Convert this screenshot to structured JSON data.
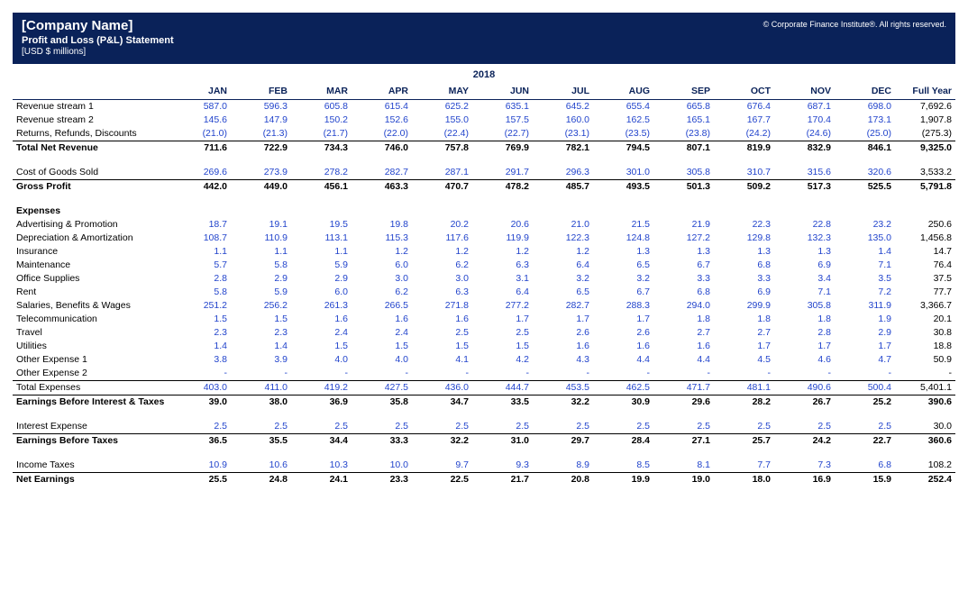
{
  "header": {
    "company_name": "[Company Name]",
    "subtitle": "Profit and Loss (P&L) Statement",
    "units": "[USD $ millions]",
    "copyright": "© Corporate Finance Institute®. All rights reserved.",
    "year": "2018"
  },
  "columns": [
    "JAN",
    "FEB",
    "MAR",
    "APR",
    "MAY",
    "JUN",
    "JUL",
    "AUG",
    "SEP",
    "OCT",
    "NOV",
    "DEC",
    "Full Year"
  ],
  "rows": [
    {
      "type": "data",
      "label": "Revenue stream 1",
      "vals": [
        "587.0",
        "596.3",
        "605.8",
        "615.4",
        "625.2",
        "635.1",
        "645.2",
        "655.4",
        "665.8",
        "676.4",
        "687.1",
        "698.0",
        "7,692.6"
      ]
    },
    {
      "type": "data",
      "label": "Revenue stream 2",
      "vals": [
        "145.6",
        "147.9",
        "150.2",
        "152.6",
        "155.0",
        "157.5",
        "160.0",
        "162.5",
        "165.1",
        "167.7",
        "170.4",
        "173.1",
        "1,907.8"
      ]
    },
    {
      "type": "data",
      "label": "Returns, Refunds, Discounts",
      "vals": [
        "(21.0)",
        "(21.3)",
        "(21.7)",
        "(22.0)",
        "(22.4)",
        "(22.7)",
        "(23.1)",
        "(23.5)",
        "(23.8)",
        "(24.2)",
        "(24.6)",
        "(25.0)",
        "(275.3)"
      ]
    },
    {
      "type": "total",
      "border": true,
      "label": "Total Net Revenue",
      "vals": [
        "711.6",
        "722.9",
        "734.3",
        "746.0",
        "757.8",
        "769.9",
        "782.1",
        "794.5",
        "807.1",
        "819.9",
        "832.9",
        "846.1",
        "9,325.0"
      ]
    },
    {
      "type": "spacer"
    },
    {
      "type": "data",
      "label": "Cost of Goods Sold",
      "vals": [
        "269.6",
        "273.9",
        "278.2",
        "282.7",
        "287.1",
        "291.7",
        "296.3",
        "301.0",
        "305.8",
        "310.7",
        "315.6",
        "320.6",
        "3,533.2"
      ]
    },
    {
      "type": "total",
      "border": true,
      "label": "Gross Profit",
      "vals": [
        "442.0",
        "449.0",
        "456.1",
        "463.3",
        "470.7",
        "478.2",
        "485.7",
        "493.5",
        "501.3",
        "509.2",
        "517.3",
        "525.5",
        "5,791.8"
      ]
    },
    {
      "type": "spacer"
    },
    {
      "type": "section",
      "label": "Expenses"
    },
    {
      "type": "data",
      "label": "Advertising & Promotion",
      "vals": [
        "18.7",
        "19.1",
        "19.5",
        "19.8",
        "20.2",
        "20.6",
        "21.0",
        "21.5",
        "21.9",
        "22.3",
        "22.8",
        "23.2",
        "250.6"
      ]
    },
    {
      "type": "data",
      "label": "Depreciation & Amortization",
      "vals": [
        "108.7",
        "110.9",
        "113.1",
        "115.3",
        "117.6",
        "119.9",
        "122.3",
        "124.8",
        "127.2",
        "129.8",
        "132.3",
        "135.0",
        "1,456.8"
      ]
    },
    {
      "type": "data",
      "label": "Insurance",
      "vals": [
        "1.1",
        "1.1",
        "1.1",
        "1.2",
        "1.2",
        "1.2",
        "1.2",
        "1.3",
        "1.3",
        "1.3",
        "1.3",
        "1.4",
        "14.7"
      ]
    },
    {
      "type": "data",
      "label": "Maintenance",
      "vals": [
        "5.7",
        "5.8",
        "5.9",
        "6.0",
        "6.2",
        "6.3",
        "6.4",
        "6.5",
        "6.7",
        "6.8",
        "6.9",
        "7.1",
        "76.4"
      ]
    },
    {
      "type": "data",
      "label": "Office Supplies",
      "vals": [
        "2.8",
        "2.9",
        "2.9",
        "3.0",
        "3.0",
        "3.1",
        "3.2",
        "3.2",
        "3.3",
        "3.3",
        "3.4",
        "3.5",
        "37.5"
      ]
    },
    {
      "type": "data",
      "label": "Rent",
      "vals": [
        "5.8",
        "5.9",
        "6.0",
        "6.2",
        "6.3",
        "6.4",
        "6.5",
        "6.7",
        "6.8",
        "6.9",
        "7.1",
        "7.2",
        "77.7"
      ]
    },
    {
      "type": "data",
      "label": "Salaries, Benefits & Wages",
      "vals": [
        "251.2",
        "256.2",
        "261.3",
        "266.5",
        "271.8",
        "277.2",
        "282.7",
        "288.3",
        "294.0",
        "299.9",
        "305.8",
        "311.9",
        "3,366.7"
      ]
    },
    {
      "type": "data",
      "label": "Telecommunication",
      "vals": [
        "1.5",
        "1.5",
        "1.6",
        "1.6",
        "1.6",
        "1.7",
        "1.7",
        "1.7",
        "1.8",
        "1.8",
        "1.8",
        "1.9",
        "20.1"
      ]
    },
    {
      "type": "data",
      "label": "Travel",
      "vals": [
        "2.3",
        "2.3",
        "2.4",
        "2.4",
        "2.5",
        "2.5",
        "2.6",
        "2.6",
        "2.7",
        "2.7",
        "2.8",
        "2.9",
        "30.8"
      ]
    },
    {
      "type": "data",
      "label": "Utilities",
      "vals": [
        "1.4",
        "1.4",
        "1.5",
        "1.5",
        "1.5",
        "1.5",
        "1.6",
        "1.6",
        "1.6",
        "1.7",
        "1.7",
        "1.7",
        "18.8"
      ]
    },
    {
      "type": "data",
      "label": "Other Expense 1",
      "vals": [
        "3.8",
        "3.9",
        "4.0",
        "4.0",
        "4.1",
        "4.2",
        "4.3",
        "4.4",
        "4.4",
        "4.5",
        "4.6",
        "4.7",
        "50.9"
      ]
    },
    {
      "type": "data",
      "label": "Other Expense 2",
      "vals": [
        "-",
        "-",
        "-",
        "-",
        "-",
        "-",
        "-",
        "-",
        "-",
        "-",
        "-",
        "-",
        "-"
      ]
    },
    {
      "type": "data",
      "border": true,
      "label": "Total Expenses",
      "vals": [
        "403.0",
        "411.0",
        "419.2",
        "427.5",
        "436.0",
        "444.7",
        "453.5",
        "462.5",
        "471.7",
        "481.1",
        "490.6",
        "500.4",
        "5,401.1"
      ]
    },
    {
      "type": "total",
      "border": true,
      "label": "Earnings Before Interest & Taxes",
      "vals": [
        "39.0",
        "38.0",
        "36.9",
        "35.8",
        "34.7",
        "33.5",
        "32.2",
        "30.9",
        "29.6",
        "28.2",
        "26.7",
        "25.2",
        "390.6"
      ]
    },
    {
      "type": "spacer"
    },
    {
      "type": "data",
      "label": "Interest Expense",
      "vals": [
        "2.5",
        "2.5",
        "2.5",
        "2.5",
        "2.5",
        "2.5",
        "2.5",
        "2.5",
        "2.5",
        "2.5",
        "2.5",
        "2.5",
        "30.0"
      ]
    },
    {
      "type": "total",
      "border": true,
      "label": "Earnings Before Taxes",
      "vals": [
        "36.5",
        "35.5",
        "34.4",
        "33.3",
        "32.2",
        "31.0",
        "29.7",
        "28.4",
        "27.1",
        "25.7",
        "24.2",
        "22.7",
        "360.6"
      ]
    },
    {
      "type": "spacer"
    },
    {
      "type": "data",
      "label": "Income Taxes",
      "vals": [
        "10.9",
        "10.6",
        "10.3",
        "10.0",
        "9.7",
        "9.3",
        "8.9",
        "8.5",
        "8.1",
        "7.7",
        "7.3",
        "6.8",
        "108.2"
      ]
    },
    {
      "type": "total",
      "border": true,
      "label": "Net Earnings",
      "vals": [
        "25.5",
        "24.8",
        "24.1",
        "23.3",
        "22.5",
        "21.7",
        "20.8",
        "19.9",
        "19.0",
        "18.0",
        "16.9",
        "15.9",
        "252.4"
      ]
    }
  ]
}
